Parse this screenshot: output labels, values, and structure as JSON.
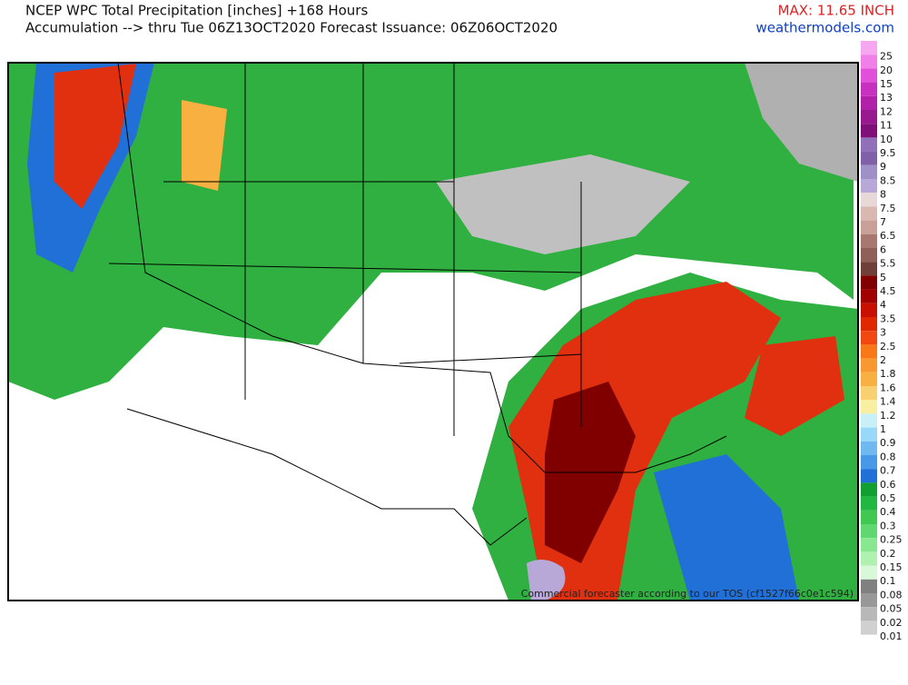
{
  "header": {
    "title": "NCEP WPC Total Precipitation [inches] +168 Hours",
    "subtitle": "Accumulation --> thru Tue 06Z13OCT2020   Forecast Issuance: 06Z06OCT2020",
    "max": "MAX: 11.65 INCH",
    "site": "weathermodels.com"
  },
  "legend": [
    {
      "label": "25",
      "color": "#f7a6f0"
    },
    {
      "label": "20",
      "color": "#f080e8"
    },
    {
      "label": "15",
      "color": "#e050d8"
    },
    {
      "label": "13",
      "color": "#c830c0"
    },
    {
      "label": "12",
      "color": "#b020a8"
    },
    {
      "label": "11",
      "color": "#981890"
    },
    {
      "label": "10",
      "color": "#801078"
    },
    {
      "label": "9.5",
      "color": "#9070b8"
    },
    {
      "label": "9",
      "color": "#8060a8"
    },
    {
      "label": "8.5",
      "color": "#a090c8"
    },
    {
      "label": "8",
      "color": "#b8a8d8"
    },
    {
      "label": "7.5",
      "color": "#e8d8d8"
    },
    {
      "label": "7",
      "color": "#d8b8b0"
    },
    {
      "label": "6.5",
      "color": "#c8a098"
    },
    {
      "label": "6",
      "color": "#a87870"
    },
    {
      "label": "5.5",
      "color": "#906058"
    },
    {
      "label": "5",
      "color": "#704038"
    },
    {
      "label": "4.5",
      "color": "#800000"
    },
    {
      "label": "4",
      "color": "#a00000"
    },
    {
      "label": "3.5",
      "color": "#c81000"
    },
    {
      "label": "3",
      "color": "#e02800"
    },
    {
      "label": "2.5",
      "color": "#f04810"
    },
    {
      "label": "2",
      "color": "#f87818"
    },
    {
      "label": "1.8",
      "color": "#f89830"
    },
    {
      "label": "1.6",
      "color": "#f8b040"
    },
    {
      "label": "1.4",
      "color": "#f8d070"
    },
    {
      "label": "1.2",
      "color": "#f8f0a0"
    },
    {
      "label": "1",
      "color": "#c8f0f8"
    },
    {
      "label": "0.9",
      "color": "#98d8f8"
    },
    {
      "label": "0.8",
      "color": "#70b8f0"
    },
    {
      "label": "0.7",
      "color": "#4898e8"
    },
    {
      "label": "0.6",
      "color": "#2070d8"
    },
    {
      "label": "0.5",
      "color": "#10a030"
    },
    {
      "label": "0.4",
      "color": "#20b840"
    },
    {
      "label": "0.3",
      "color": "#40c850"
    },
    {
      "label": "0.25",
      "color": "#60d870"
    },
    {
      "label": "0.2",
      "color": "#88e890"
    },
    {
      "label": "0.15",
      "color": "#b0f0b0"
    },
    {
      "label": "0.1",
      "color": "#d8f8d8"
    },
    {
      "label": "0.08",
      "color": "#808080"
    },
    {
      "label": "0.05",
      "color": "#989898"
    },
    {
      "label": "0.02",
      "color": "#b8b8b8"
    },
    {
      "label": "0.01",
      "color": "#d0d0d0"
    }
  ],
  "watermark": "Commercial forecaster according to our TOS (cf1527f66c0e1c594)"
}
